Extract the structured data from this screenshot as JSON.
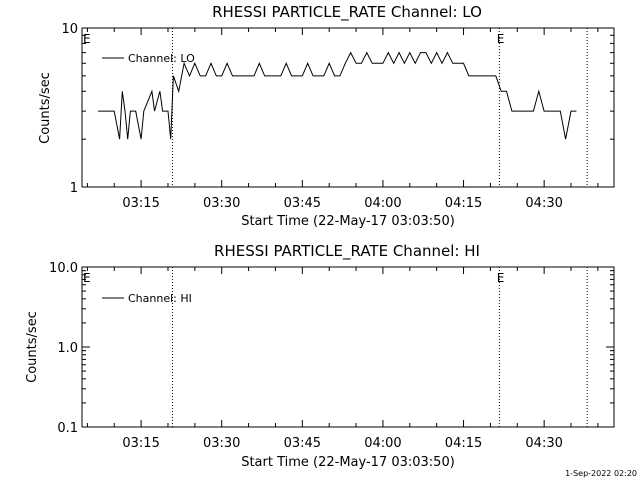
{
  "footer": {
    "stamp": "1-Sep-2022 02:20"
  },
  "chart_data": [
    {
      "type": "line",
      "title": "RHESSI PARTICLE_RATE Channel: LO",
      "xlabel": "Start Time (22-May-17 03:03:50)",
      "ylabel": "Counts/sec",
      "y_scale": "log",
      "xlim": [
        "03:04",
        "04:43"
      ],
      "ylim": [
        1,
        10
      ],
      "x_ticks": [
        "03:15",
        "03:30",
        "03:45",
        "04:00",
        "04:15",
        "04:30"
      ],
      "y_ticks": [
        "1",
        "10"
      ],
      "grid": false,
      "legend_position": "top-left",
      "series": [
        {
          "name": "Channel: LO",
          "x": [
            "03:07:00",
            "03:10:00",
            "03:11:00",
            "03:11:30",
            "03:12:00",
            "03:12:30",
            "03:13:00",
            "03:14:00",
            "03:15:00",
            "03:15:30",
            "03:17:00",
            "03:17:30",
            "03:18:30",
            "03:19:00",
            "03:20:00",
            "03:20:30",
            "03:21:00",
            "03:22:00",
            "03:23:00",
            "03:24:00",
            "03:25:00",
            "03:26:00",
            "03:27:00",
            "03:28:00",
            "03:29:00",
            "03:30:00",
            "03:31:00",
            "03:32:00",
            "03:33:00",
            "03:34:00",
            "03:35:00",
            "03:36:00",
            "03:37:00",
            "03:38:00",
            "03:39:00",
            "03:40:00",
            "03:41:00",
            "03:42:00",
            "03:43:00",
            "03:44:00",
            "03:45:00",
            "03:46:00",
            "03:47:00",
            "03:48:00",
            "03:49:00",
            "03:50:00",
            "03:51:00",
            "03:52:00",
            "03:53:00",
            "03:54:00",
            "03:55:00",
            "03:56:00",
            "03:57:00",
            "03:58:00",
            "03:59:00",
            "04:00:00",
            "04:01:00",
            "04:02:00",
            "04:03:00",
            "04:04:00",
            "04:05:00",
            "04:06:00",
            "04:07:00",
            "04:08:00",
            "04:09:00",
            "04:10:00",
            "04:11:00",
            "04:12:00",
            "04:13:00",
            "04:14:00",
            "04:15:00",
            "04:16:00",
            "04:17:00",
            "04:18:00",
            "04:19:00",
            "04:20:00",
            "04:21:00",
            "04:22:00",
            "04:23:00",
            "04:24:00",
            "04:25:00",
            "04:26:00",
            "04:27:00",
            "04:28:00",
            "04:29:00",
            "04:30:00",
            "04:31:00",
            "04:32:00",
            "04:33:00",
            "04:34:00",
            "04:35:00",
            "04:36:00"
          ],
          "y": [
            3,
            3,
            2,
            4,
            3,
            2,
            3,
            3,
            2,
            3,
            4,
            3,
            4,
            3,
            3,
            2,
            5,
            4,
            6,
            5,
            6,
            5,
            5,
            6,
            5,
            5,
            6,
            5,
            5,
            5,
            5,
            5,
            6,
            5,
            5,
            5,
            5,
            6,
            5,
            5,
            5,
            6,
            5,
            5,
            5,
            6,
            5,
            5,
            6,
            7,
            6,
            6,
            7,
            6,
            6,
            6,
            7,
            6,
            7,
            6,
            7,
            6,
            7,
            7,
            6,
            7,
            6,
            7,
            6,
            6,
            6,
            5,
            5,
            5,
            5,
            5,
            5,
            4,
            4,
            3,
            3,
            3,
            3,
            3,
            4,
            3,
            3,
            3,
            3,
            2,
            3,
            3
          ]
        }
      ],
      "annotations": [
        {
          "label": "E",
          "time": "03:04"
        },
        {
          "label": "E",
          "time": "04:21"
        }
      ],
      "reference_lines": [
        "03:20:50",
        "04:21:40",
        "04:38:00"
      ]
    },
    {
      "type": "line",
      "title": "RHESSI PARTICLE_RATE Channel: HI",
      "xlabel": "Start Time (22-May-17 03:03:50)",
      "ylabel": "Counts/sec",
      "y_scale": "log",
      "xlim": [
        "03:04",
        "04:43"
      ],
      "ylim": [
        0.1,
        10
      ],
      "x_ticks": [
        "03:15",
        "03:30",
        "03:45",
        "04:00",
        "04:15",
        "04:30"
      ],
      "y_ticks": [
        "0.1",
        "1.0",
        "10.0"
      ],
      "grid": false,
      "legend_position": "top-left",
      "series": [
        {
          "name": "Channel: HI",
          "x": [],
          "y": []
        }
      ],
      "annotations": [
        {
          "label": "E",
          "time": "03:04"
        },
        {
          "label": "E",
          "time": "04:21"
        }
      ],
      "reference_lines": [
        "03:20:50",
        "04:21:40",
        "04:38:00"
      ]
    }
  ]
}
